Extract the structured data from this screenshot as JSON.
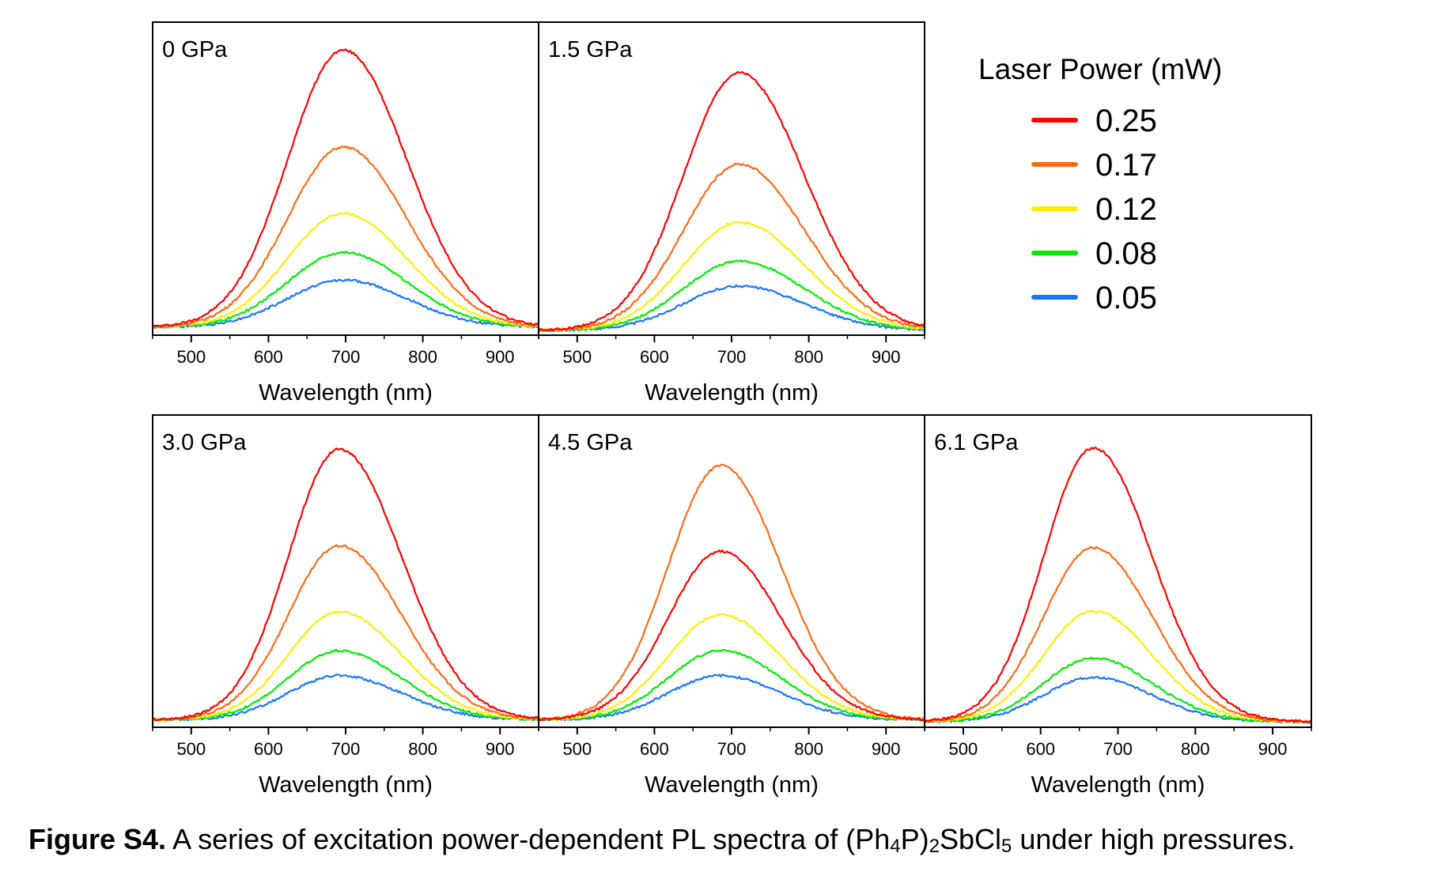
{
  "chart_data": [
    {
      "type": "line",
      "panel_label": "0 GPa",
      "xlabel": "Wavelength (nm)",
      "ylabel": "",
      "xlim": [
        450,
        950
      ],
      "ylim": [
        0,
        1.05
      ],
      "x_ticks": [
        500,
        600,
        700,
        800,
        900
      ],
      "y_ticks_shown": false,
      "peak_center": 697,
      "peak_width_left": 72,
      "peak_width_right": 82,
      "baseline": 0.012,
      "series": [
        {
          "name": "0.25",
          "peak": 1.0,
          "color": "#ff0000"
        },
        {
          "name": "0.17",
          "peak": 0.65,
          "color": "#ff6a13"
        },
        {
          "name": "0.12",
          "peak": 0.41,
          "color": "#ffee00"
        },
        {
          "name": "0.08",
          "peak": 0.27,
          "color": "#00ee00"
        },
        {
          "name": "0.05",
          "peak": 0.17,
          "color": "#1776ff"
        }
      ]
    },
    {
      "type": "line",
      "panel_label": "1.5 GPa",
      "xlabel": "Wavelength (nm)",
      "ylabel": "",
      "xlim": [
        450,
        950
      ],
      "ylim": [
        0,
        1.05
      ],
      "x_ticks": [
        500,
        600,
        700,
        800,
        900
      ],
      "y_ticks_shown": false,
      "peak_center": 710,
      "peak_width_left": 72,
      "peak_width_right": 84,
      "baseline": 0.0,
      "series": [
        {
          "name": "0.25",
          "peak": 0.93,
          "color": "#ff0000"
        },
        {
          "name": "0.17",
          "peak": 0.6,
          "color": "#ff6a13"
        },
        {
          "name": "0.12",
          "peak": 0.39,
          "color": "#ffee00"
        },
        {
          "name": "0.08",
          "peak": 0.25,
          "color": "#00ee00"
        },
        {
          "name": "0.05",
          "peak": 0.16,
          "color": "#1776ff"
        }
      ]
    },
    {
      "type": "line",
      "panel_label": "3.0 GPa",
      "xlabel": "Wavelength (nm)",
      "ylabel": "",
      "xlim": [
        450,
        950
      ],
      "ylim": [
        0,
        1.05
      ],
      "x_ticks": [
        500,
        600,
        700,
        800,
        900
      ],
      "y_ticks_shown": false,
      "peak_center": 692,
      "peak_width_left": 66,
      "peak_width_right": 80,
      "baseline": 0.01,
      "series": [
        {
          "name": "0.25",
          "peak": 0.98,
          "color": "#ff0000"
        },
        {
          "name": "0.17",
          "peak": 0.63,
          "color": "#ff6a13"
        },
        {
          "name": "0.12",
          "peak": 0.39,
          "color": "#ffee00"
        },
        {
          "name": "0.08",
          "peak": 0.25,
          "color": "#00ee00"
        },
        {
          "name": "0.05",
          "peak": 0.16,
          "color": "#1776ff"
        }
      ]
    },
    {
      "type": "line",
      "panel_label": "4.5 GPa",
      "xlabel": "Wavelength (nm)",
      "ylabel": "",
      "xlim": [
        450,
        950
      ],
      "ylim": [
        0,
        1.05
      ],
      "x_ticks": [
        500,
        600,
        700,
        800,
        900
      ],
      "y_ticks_shown": false,
      "peak_center": 686,
      "peak_width_left": 68,
      "peak_width_right": 78,
      "baseline": 0.01,
      "series": [
        {
          "name": "0.25",
          "peak": 0.61,
          "color": "#ff0000"
        },
        {
          "name": "0.17",
          "peak": 0.92,
          "color": "#ff6a13"
        },
        {
          "name": "0.12",
          "peak": 0.38,
          "color": "#ffee00"
        },
        {
          "name": "0.08",
          "peak": 0.25,
          "color": "#00ee00"
        },
        {
          "name": "0.05",
          "peak": 0.16,
          "color": "#1776ff"
        }
      ]
    },
    {
      "type": "line",
      "panel_label": "6.1 GPa",
      "xlabel": "Wavelength (nm)",
      "ylabel": "",
      "xlim": [
        450,
        950
      ],
      "ylim": [
        0,
        1.05
      ],
      "x_ticks": [
        500,
        600,
        700,
        800,
        900
      ],
      "y_ticks_shown": false,
      "peak_center": 668,
      "peak_width_left": 64,
      "peak_width_right": 76,
      "baseline": 0.003,
      "series": [
        {
          "name": "0.25",
          "peak": 0.99,
          "color": "#ff0000"
        },
        {
          "name": "0.17",
          "peak": 0.63,
          "color": "#ff6a13"
        },
        {
          "name": "0.12",
          "peak": 0.4,
          "color": "#ffee00"
        },
        {
          "name": "0.08",
          "peak": 0.23,
          "color": "#00ee00"
        },
        {
          "name": "0.05",
          "peak": 0.16,
          "color": "#1776ff"
        }
      ]
    }
  ],
  "legend": {
    "title": "Laser Power (mW)",
    "entries": [
      {
        "label": "0.25",
        "color": "#ff0000"
      },
      {
        "label": "0.17",
        "color": "#ff6a13"
      },
      {
        "label": "0.12",
        "color": "#ffee00"
      },
      {
        "label": "0.08",
        "color": "#00ee00"
      },
      {
        "label": "0.05",
        "color": "#1776ff"
      }
    ]
  },
  "caption": {
    "label": "Figure S4.",
    "text_before": " A series of excitation power-dependent PL spectra of (Ph",
    "sub1": "4",
    "text_mid1": "P)",
    "sub2": "2",
    "text_mid2": "SbCl",
    "sub3": "5",
    "text_after": " under high pressures."
  }
}
